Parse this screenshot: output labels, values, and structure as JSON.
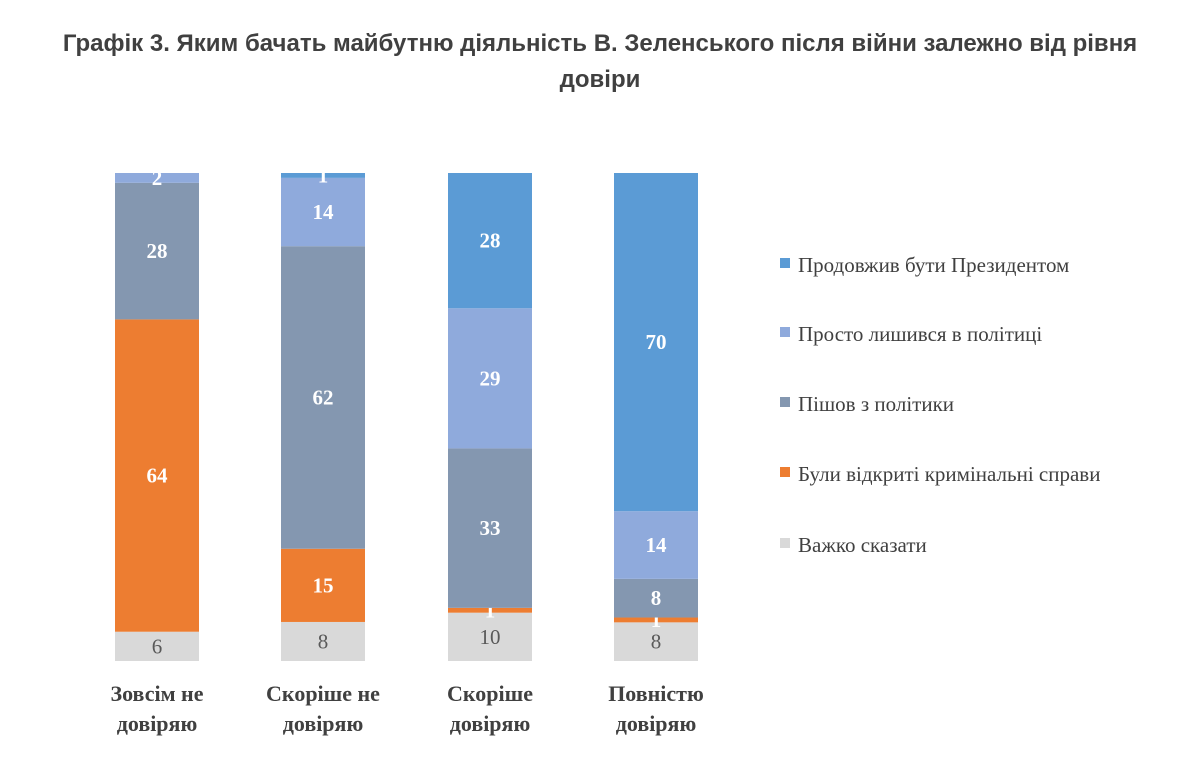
{
  "title": "Графік 3. Яким бачать майбутню діяльність В. Зеленського після війни залежно від рівня довіри",
  "colors": {
    "Продовжив бути Президентом": "#5b9bd5",
    "Просто лишився в політиці": "#8faadc",
    "Пішов з політики": "#8497b0",
    "Були відкриті кримінальні справи": "#ed7d31",
    "Важко сказати": "#d9d9d9"
  },
  "legend": [
    {
      "label": "Продовжив бути Президентом",
      "color": "#5b9bd5"
    },
    {
      "label": "Просто лишився в політиці",
      "color": "#8faadc"
    },
    {
      "label": "Пішов з політики",
      "color": "#8497b0"
    },
    {
      "label": "Були відкриті кримінальні справи",
      "color": "#ed7d31"
    },
    {
      "label": "Важко сказати",
      "color": "#d9d9d9"
    }
  ],
  "chart_data": {
    "type": "bar",
    "stacked": true,
    "orientation": "vertical",
    "title": "Графік 3. Яким бачать майбутню діяльність В. Зеленського після війни залежно від рівня довіри",
    "categories": [
      "Зовсім не довіряю",
      "Скоріше не довіряю",
      "Скоріше довіряю",
      "Повністю довіряю"
    ],
    "category_lines": [
      [
        "Зовсім не",
        "довіряю"
      ],
      [
        "Скоріше не",
        "довіряю"
      ],
      [
        "Скоріше",
        "довіряю"
      ],
      [
        "Повністю",
        "довіряю"
      ]
    ],
    "series": [
      {
        "name": "Важко сказати",
        "values": [
          6,
          8,
          10,
          8
        ]
      },
      {
        "name": "Були відкриті кримінальні справи",
        "values": [
          64,
          15,
          1,
          1
        ]
      },
      {
        "name": "Пішов з політики",
        "values": [
          28,
          62,
          33,
          8
        ]
      },
      {
        "name": "Просто лишився в політиці",
        "values": [
          2,
          14,
          29,
          14
        ]
      },
      {
        "name": "Продовжив бути Президентом",
        "values": [
          0,
          1,
          28,
          70
        ]
      }
    ],
    "ylim": [
      0,
      100
    ],
    "grid": false,
    "legend_position": "right",
    "data_labels": true
  }
}
